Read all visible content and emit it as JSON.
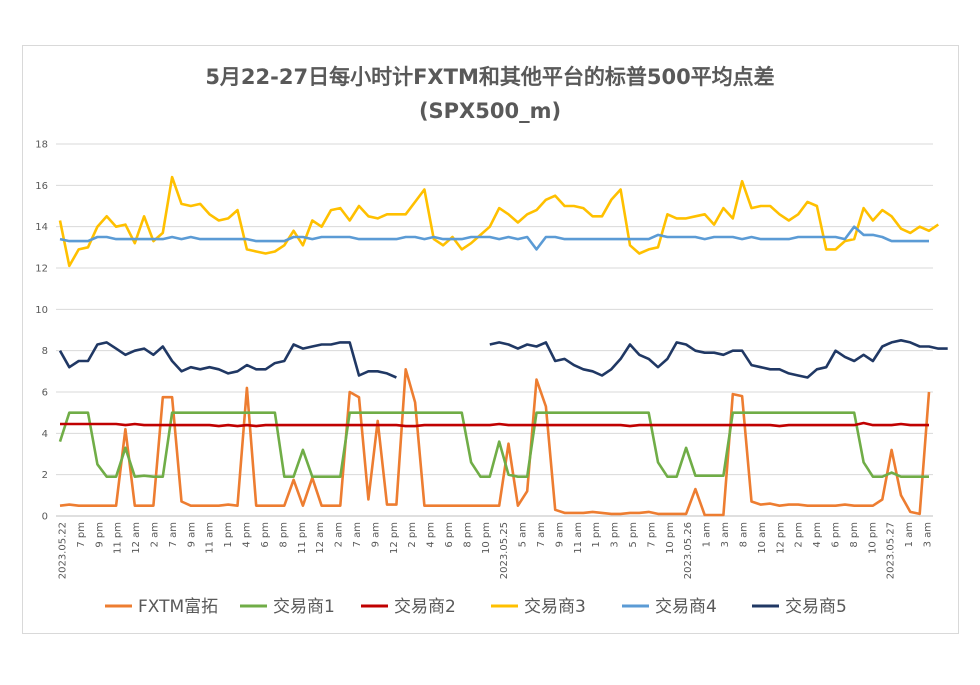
{
  "chart_data": {
    "type": "line",
    "title": "5月22-27日每小时计FXTM和其他平台的标普500平均点差",
    "subtitle": "(SPX500_m)",
    "xlabel": "",
    "ylabel": "",
    "ylim": [
      0,
      18
    ],
    "yticks": [
      0,
      2,
      4,
      6,
      8,
      10,
      12,
      14,
      16,
      18
    ],
    "grid": true,
    "legend_position": "bottom",
    "x_tick_labels": [
      "2023.05.22",
      "7 pm",
      "9 pm",
      "11 pm",
      "12 am",
      "2 am",
      "7 am",
      "9 am",
      "11 am",
      "1 pm",
      "4 pm",
      "6 pm",
      "8 pm",
      "11 pm",
      "12 am",
      "2 am",
      "7 am",
      "9 am",
      "12 pm",
      "2 pm",
      "4 pm",
      "6 pm",
      "8 pm",
      "10 pm",
      "2023.05.25",
      "5 am",
      "7 am",
      "9 am",
      "11 am",
      "1 pm",
      "3 pm",
      "5 pm",
      "7 pm",
      "10 pm",
      "2023.05.26",
      "1 am",
      "3 am",
      "8 am",
      "10 am",
      "12 pm",
      "2 pm",
      "4 pm",
      "6 pm",
      "8 pm",
      "10 pm",
      "2023.05.27",
      "1 am",
      "3 am"
    ],
    "series": [
      {
        "name": "FXTM富拓",
        "color": "#ED7D31",
        "values": [
          0.5,
          0.55,
          0.5,
          0.5,
          0.5,
          0.5,
          0.5,
          4.2,
          0.5,
          0.5,
          0.5,
          5.75,
          5.75,
          0.7,
          0.5,
          0.5,
          0.5,
          0.5,
          0.55,
          0.5,
          6.2,
          0.5,
          0.5,
          0.5,
          0.5,
          1.75,
          0.5,
          1.85,
          0.5,
          0.5,
          0.5,
          6.0,
          5.75,
          0.8,
          4.6,
          0.55,
          0.55,
          7.1,
          5.5,
          0.5,
          0.5,
          0.5,
          0.5,
          0.5,
          0.5,
          0.5,
          0.5,
          0.5,
          3.5,
          0.5,
          1.2,
          6.6,
          5.3,
          0.3,
          0.15,
          0.15,
          0.15,
          0.2,
          0.15,
          0.1,
          0.1,
          0.15,
          0.15,
          0.2,
          0.1,
          0.1,
          0.1,
          0.1,
          1.3,
          0.05,
          0.05,
          0.05,
          5.9,
          5.8,
          0.7,
          0.55,
          0.6,
          0.5,
          0.55,
          0.55,
          0.5,
          0.5,
          0.5,
          0.5,
          0.55,
          0.5,
          0.5,
          0.5,
          0.8,
          3.2,
          1.0,
          0.2,
          0.1,
          6.0
        ]
      },
      {
        "name": "交易商1",
        "color": "#70AD47",
        "values": [
          3.6,
          5.0,
          5.0,
          5.0,
          2.5,
          1.9,
          1.9,
          3.3,
          1.9,
          1.95,
          1.9,
          1.9,
          5.0,
          5.0,
          5.0,
          5.0,
          5.0,
          5.0,
          5.0,
          5.0,
          5.0,
          5.0,
          5.0,
          5.0,
          1.9,
          1.9,
          3.2,
          1.9,
          1.9,
          1.9,
          1.9,
          5.0,
          5.0,
          5.0,
          5.0,
          5.0,
          5.0,
          5.0,
          5.0,
          5.0,
          5.0,
          5.0,
          5.0,
          5.0,
          2.6,
          1.9,
          1.9,
          3.6,
          2.0,
          1.9,
          1.9,
          5.0,
          5.0,
          5.0,
          5.0,
          5.0,
          5.0,
          5.0,
          5.0,
          5.0,
          5.0,
          5.0,
          5.0,
          5.0,
          2.6,
          1.9,
          1.9,
          3.3,
          1.95,
          1.95,
          1.95,
          1.95,
          5.0,
          5.0,
          5.0,
          5.0,
          5.0,
          5.0,
          5.0,
          5.0,
          5.0,
          5.0,
          5.0,
          5.0,
          5.0,
          5.0,
          2.6,
          1.9,
          1.9,
          2.1,
          1.9,
          1.9,
          1.9,
          1.9
        ]
      },
      {
        "name": "交易商2",
        "color": "#C00000",
        "values": [
          4.45,
          4.45,
          4.45,
          4.45,
          4.45,
          4.45,
          4.45,
          4.4,
          4.45,
          4.4,
          4.4,
          4.4,
          4.4,
          4.4,
          4.4,
          4.4,
          4.4,
          4.35,
          4.4,
          4.35,
          4.4,
          4.35,
          4.4,
          4.4,
          4.4,
          4.4,
          4.4,
          4.4,
          4.4,
          4.4,
          4.4,
          4.4,
          4.4,
          4.4,
          4.4,
          4.4,
          4.4,
          4.35,
          4.35,
          4.4,
          4.4,
          4.4,
          4.4,
          4.4,
          4.4,
          4.4,
          4.4,
          4.45,
          4.4,
          4.4,
          4.4,
          4.4,
          4.4,
          4.4,
          4.4,
          4.4,
          4.4,
          4.4,
          4.4,
          4.4,
          4.4,
          4.35,
          4.4,
          4.4,
          4.4,
          4.4,
          4.4,
          4.4,
          4.4,
          4.4,
          4.4,
          4.4,
          4.4,
          4.4,
          4.4,
          4.4,
          4.4,
          4.35,
          4.4,
          4.4,
          4.4,
          4.4,
          4.4,
          4.4,
          4.4,
          4.4,
          4.5,
          4.4,
          4.4,
          4.4,
          4.45,
          4.4,
          4.4,
          4.4
        ]
      },
      {
        "name": "交易商3",
        "color": "#FFC000",
        "values": [
          14.3,
          12.1,
          12.9,
          13.0,
          14.0,
          14.5,
          14.0,
          14.1,
          13.2,
          14.5,
          13.3,
          13.7,
          16.4,
          15.1,
          15.0,
          15.1,
          14.6,
          14.3,
          14.4,
          14.8,
          12.9,
          12.8,
          12.7,
          12.8,
          13.1,
          13.8,
          13.1,
          14.3,
          14.0,
          14.8,
          14.9,
          14.3,
          15.0,
          14.5,
          14.4,
          14.6,
          14.6,
          14.6,
          15.2,
          15.8,
          13.4,
          13.1,
          13.5,
          12.9,
          13.2,
          13.6,
          14.0,
          14.9,
          14.6,
          14.2,
          14.6,
          14.8,
          15.3,
          15.5,
          15.0,
          15.0,
          14.9,
          14.5,
          14.5,
          15.3,
          15.8,
          13.1,
          12.7,
          12.9,
          13.0,
          14.6,
          14.4,
          14.4,
          14.5,
          14.6,
          14.1,
          14.9,
          14.4,
          16.2,
          14.9,
          15.0,
          15.0,
          14.6,
          14.3,
          14.6,
          15.2,
          15.0,
          12.9,
          12.9,
          13.3,
          13.4,
          14.9,
          14.3,
          14.8,
          14.5,
          13.9,
          13.7,
          14.0,
          13.8,
          14.1
        ]
      },
      {
        "name": "交易商4",
        "color": "#5B9BD5",
        "values": [
          13.4,
          13.3,
          13.3,
          13.3,
          13.5,
          13.5,
          13.4,
          13.4,
          13.4,
          13.4,
          13.4,
          13.4,
          13.5,
          13.4,
          13.5,
          13.4,
          13.4,
          13.4,
          13.4,
          13.4,
          13.4,
          13.3,
          13.3,
          13.3,
          13.3,
          13.5,
          13.5,
          13.4,
          13.5,
          13.5,
          13.5,
          13.5,
          13.4,
          13.4,
          13.4,
          13.4,
          13.4,
          13.5,
          13.5,
          13.4,
          13.5,
          13.4,
          13.4,
          13.4,
          13.5,
          13.5,
          13.5,
          13.4,
          13.5,
          13.4,
          13.5,
          12.9,
          13.5,
          13.5,
          13.4,
          13.4,
          13.4,
          13.4,
          13.4,
          13.4,
          13.4,
          13.4,
          13.4,
          13.4,
          13.6,
          13.5,
          13.5,
          13.5,
          13.5,
          13.4,
          13.5,
          13.5,
          13.5,
          13.4,
          13.5,
          13.4,
          13.4,
          13.4,
          13.4,
          13.5,
          13.5,
          13.5,
          13.5,
          13.5,
          13.4,
          14.0,
          13.6,
          13.6,
          13.5,
          13.3,
          13.3,
          13.3,
          13.3,
          13.3
        ]
      },
      {
        "name": "交易商5",
        "color": "#203864",
        "values": [
          8.0,
          7.2,
          7.5,
          7.5,
          8.3,
          8.4,
          8.1,
          7.8,
          8.0,
          8.1,
          7.8,
          8.2,
          7.5,
          7.0,
          7.2,
          7.1,
          7.2,
          7.1,
          6.9,
          7.0,
          7.3,
          7.1,
          7.1,
          7.4,
          7.5,
          8.3,
          8.1,
          8.2,
          8.3,
          8.3,
          8.4,
          8.4,
          6.8,
          7.0,
          7.0,
          6.9,
          6.7,
          null,
          null,
          null,
          null,
          null,
          null,
          null,
          null,
          null,
          8.3,
          8.4,
          8.3,
          8.1,
          8.3,
          8.2,
          8.4,
          7.5,
          7.6,
          7.3,
          7.1,
          7.0,
          6.8,
          7.1,
          7.6,
          8.3,
          7.8,
          7.6,
          7.2,
          7.6,
          8.4,
          8.3,
          8.0,
          7.9,
          7.9,
          7.8,
          8.0,
          8.0,
          7.3,
          7.2,
          7.1,
          7.1,
          6.9,
          6.8,
          6.7,
          7.1,
          7.2,
          8.0,
          7.7,
          7.5,
          7.8,
          7.5,
          8.2,
          8.4,
          8.5,
          8.4,
          8.2,
          8.2,
          8.1,
          8.1
        ]
      }
    ]
  }
}
